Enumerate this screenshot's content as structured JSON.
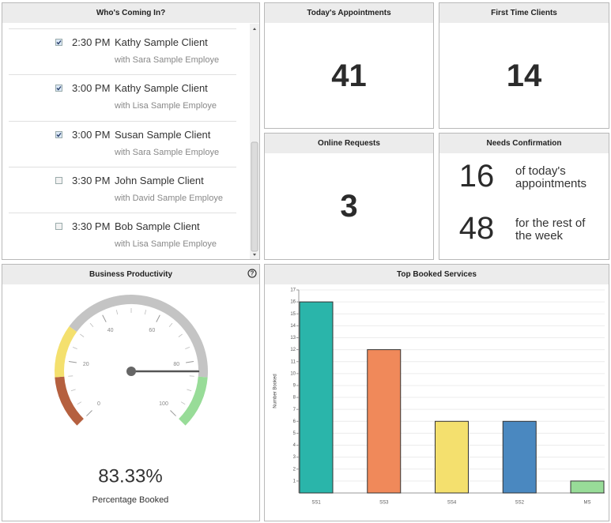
{
  "appointments_panel": {
    "title": "Who's Coming In?",
    "items": [
      {
        "checked": true,
        "time": "2:30 PM",
        "client": "Kathy Sample Client",
        "employee": "with Sara Sample Employe"
      },
      {
        "checked": true,
        "time": "3:00 PM",
        "client": "Kathy Sample Client",
        "employee": "with Lisa Sample Employe"
      },
      {
        "checked": true,
        "time": "3:00 PM",
        "client": "Susan Sample Client",
        "employee": "with Sara Sample Employe"
      },
      {
        "checked": false,
        "time": "3:30 PM",
        "client": "John Sample Client",
        "employee": "with David Sample Employe"
      },
      {
        "checked": false,
        "time": "3:30 PM",
        "client": "Bob Sample Client",
        "employee": "with Lisa Sample Employe"
      }
    ]
  },
  "stats": [
    {
      "title": "Today's Appointments",
      "value": 41
    },
    {
      "title": "First Time Clients",
      "value": 14
    },
    {
      "title": "Online Requests",
      "value": 3
    }
  ],
  "needs_confirmation": {
    "title": "Needs Confirmation",
    "rows": [
      {
        "value": 16,
        "label": "of today's appointments"
      },
      {
        "value": 48,
        "label": "for the rest of the week"
      }
    ]
  },
  "productivity": {
    "title": "Business Productivity",
    "help": "?",
    "gauge": {
      "min": 0,
      "max": 100,
      "ticks": [
        0,
        20,
        40,
        60,
        80,
        100
      ],
      "bands": [
        {
          "from": 0,
          "to": 15,
          "color": "#b5603f"
        },
        {
          "from": 15,
          "to": 30,
          "color": "#f4e06e"
        },
        {
          "from": 30,
          "to": 85,
          "color": "#c4c4c4"
        },
        {
          "from": 85,
          "to": 100,
          "color": "#98dc98"
        }
      ],
      "value": 83.33,
      "value_label": "83.33%",
      "caption": "Percentage Booked"
    }
  },
  "chart_data": {
    "type": "bar",
    "title": "Top Booked Services",
    "y_label": "Number Booked",
    "categories": [
      "SS1",
      "SS3",
      "SS4",
      "SS2",
      "MS"
    ],
    "values": [
      16,
      12,
      6,
      6,
      1
    ],
    "colors": [
      "#2ab5aa",
      "#f0895a",
      "#f4e06e",
      "#4a88c0",
      "#98dc98"
    ],
    "ylim": [
      0,
      17
    ],
    "yticks": [
      1,
      2,
      3,
      4,
      5,
      6,
      7,
      8,
      9,
      10,
      11,
      12,
      13,
      14,
      15,
      16,
      17
    ],
    "grid": true
  }
}
